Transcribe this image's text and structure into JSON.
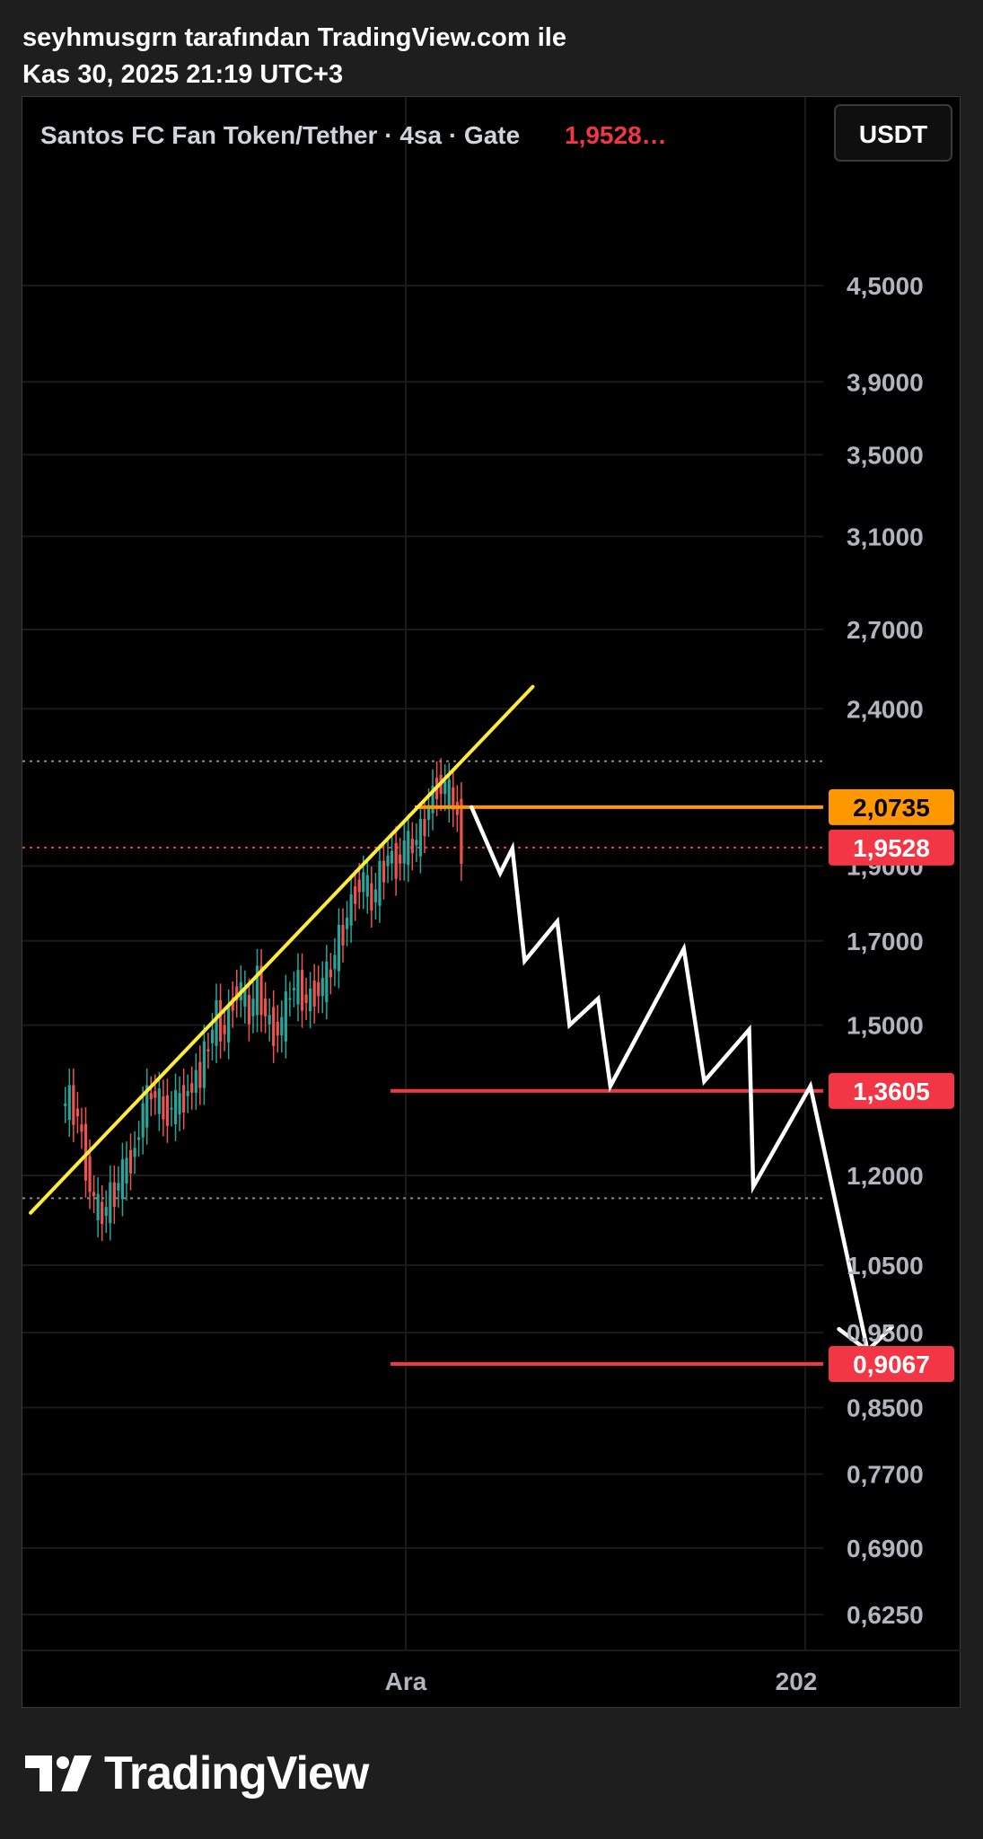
{
  "header": {
    "author_line": "seyhmusgrn tarafından TradingView.com ile",
    "date_line": "Kas 30, 2025 21:19 UTC+3"
  },
  "symbol_bar": {
    "title": "Santos FC Fan Token/Tether · 4sa · Gate",
    "last_price": "1,9528…",
    "currency_button": "USDT"
  },
  "footer": {
    "brand": "TradingView"
  },
  "colors": {
    "background": "#000000",
    "trendline": "#ffeb3b",
    "projection": "#ffffff",
    "level_orange": "#ff9800",
    "level_red": "#f23645",
    "candle_up": "#26a69a",
    "candle_down": "#ef5350"
  },
  "chart_data": {
    "type": "candlestick",
    "price_scale": "log",
    "ylim": [
      0.6,
      5.6
    ],
    "y_ticks": [
      "4,5000",
      "3,9000",
      "3,5000",
      "3,1000",
      "2,7000",
      "2,4000",
      "1,9000",
      "1,7000",
      "1,5000",
      "1,2000",
      "1,0500",
      "0,9500",
      "0,8500",
      "0,7700",
      "0,6900",
      "0,6250"
    ],
    "y_tick_values": [
      4.5,
      3.9,
      3.5,
      3.1,
      2.7,
      2.4,
      1.9,
      1.7,
      1.5,
      1.2,
      1.05,
      0.95,
      0.85,
      0.77,
      0.69,
      0.625
    ],
    "x_ticks": [
      "Ara",
      "202"
    ],
    "price_labels": [
      {
        "label": "2,0735",
        "value": 2.0735,
        "color": "#ff9800",
        "note": "horizontal level"
      },
      {
        "label": "1,9528",
        "value": 1.9528,
        "color": "#f23645",
        "note": "last price"
      },
      {
        "label": "1,3605",
        "value": 1.3605,
        "color": "#f23645",
        "note": "horizontal level"
      },
      {
        "label": "0,9067",
        "value": 0.9067,
        "color": "#f23645",
        "note": "horizontal level"
      }
    ],
    "dotted_levels": [
      2.22,
      1.16
    ],
    "price_path": [
      [
        0,
        1.33
      ],
      [
        2,
        1.34
      ],
      [
        4,
        1.31
      ],
      [
        6,
        1.22
      ],
      [
        8,
        1.15
      ],
      [
        10,
        1.13
      ],
      [
        12,
        1.16
      ],
      [
        15,
        1.2
      ],
      [
        18,
        1.25
      ],
      [
        20,
        1.32
      ],
      [
        22,
        1.36
      ],
      [
        25,
        1.32
      ],
      [
        28,
        1.33
      ],
      [
        31,
        1.36
      ],
      [
        34,
        1.4
      ],
      [
        36,
        1.46
      ],
      [
        38,
        1.52
      ],
      [
        40,
        1.48
      ],
      [
        42,
        1.57
      ],
      [
        44,
        1.58
      ],
      [
        46,
        1.52
      ],
      [
        48,
        1.6
      ],
      [
        50,
        1.52
      ],
      [
        52,
        1.49
      ],
      [
        54,
        1.5
      ],
      [
        56,
        1.58
      ],
      [
        58,
        1.59
      ],
      [
        60,
        1.55
      ],
      [
        62,
        1.58
      ],
      [
        64,
        1.59
      ],
      [
        66,
        1.63
      ],
      [
        68,
        1.7
      ],
      [
        70,
        1.76
      ],
      [
        72,
        1.84
      ],
      [
        74,
        1.86
      ],
      [
        76,
        1.8
      ],
      [
        78,
        1.87
      ],
      [
        80,
        1.93
      ],
      [
        82,
        1.91
      ],
      [
        84,
        1.95
      ],
      [
        86,
        1.96
      ],
      [
        88,
        1.99
      ],
      [
        90,
        2.08
      ],
      [
        92,
        2.15
      ],
      [
        94,
        2.13
      ],
      [
        96,
        2.09
      ],
      [
        97,
        2.05
      ],
      [
        98,
        1.9528
      ]
    ],
    "trendline": {
      "points": [
        [
          -8,
          1.135
        ],
        [
          115,
          2.48
        ]
      ],
      "color": "#ffeb3b"
    },
    "projection": {
      "points": [
        [
          100,
          2.0735
        ],
        [
          107,
          1.88
        ],
        [
          110,
          1.95
        ],
        [
          113,
          1.65
        ],
        [
          121,
          1.75
        ],
        [
          124,
          1.5
        ],
        [
          131,
          1.56
        ],
        [
          134,
          1.37
        ],
        [
          152,
          1.68
        ],
        [
          157,
          1.38
        ],
        [
          168,
          1.49
        ],
        [
          169,
          1.18
        ],
        [
          183,
          1.37
        ],
        [
          197,
          0.925
        ],
        [
          203,
          0.958
        ]
      ],
      "arrowhead": [
        [
          190,
          0.955
        ],
        [
          197,
          0.925
        ],
        [
          203,
          0.958
        ]
      ],
      "color": "#ffffff"
    },
    "x_range": [
      -10,
      220
    ]
  }
}
